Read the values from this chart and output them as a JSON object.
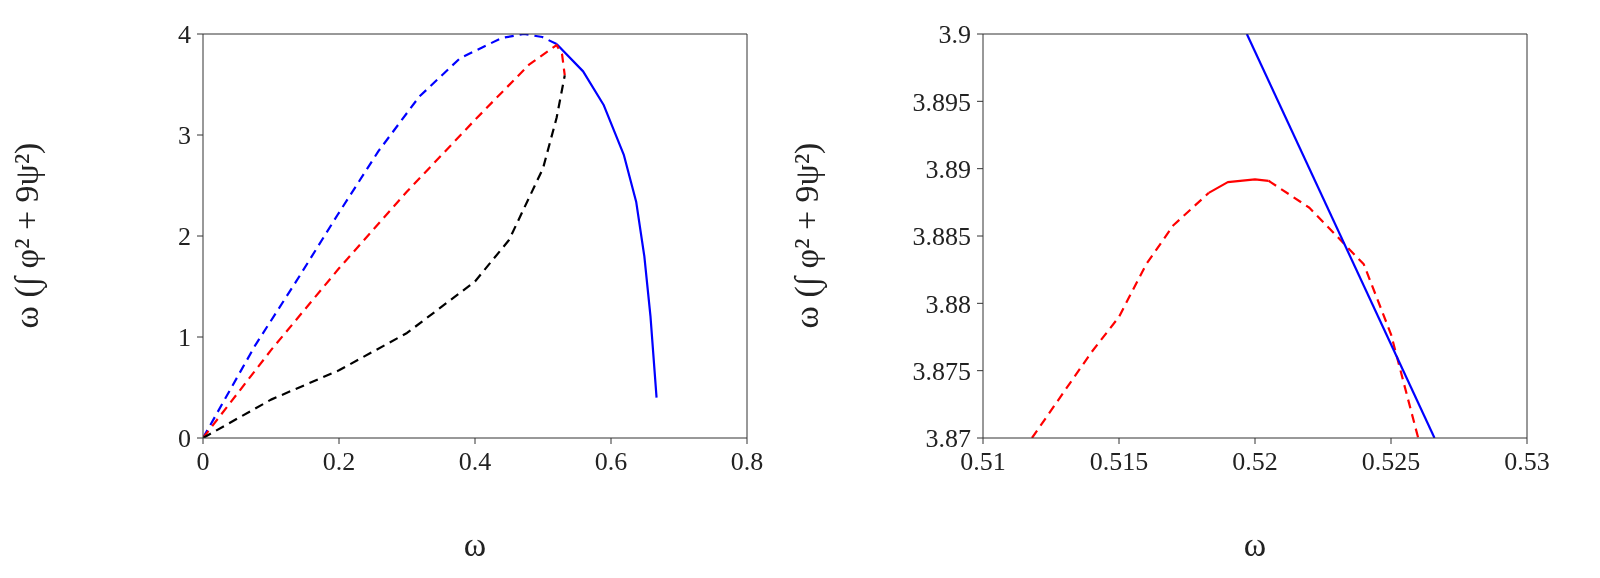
{
  "chart_data": [
    {
      "type": "line",
      "xlabel": "ω",
      "ylabel": "ω (∫ φ² + 9ψ²)",
      "xlim": [
        0,
        0.8
      ],
      "ylim": [
        0,
        4
      ],
      "xticks": [
        0,
        0.2,
        0.4,
        0.6,
        0.8
      ],
      "yticks": [
        0,
        1,
        2,
        3,
        4
      ],
      "series": [
        {
          "color": "#0000ff",
          "line_style": "dashed",
          "x": [
            0,
            0.077,
            0.137,
            0.198,
            0.258,
            0.318,
            0.378,
            0.439,
            0.472,
            0.499,
            0.52
          ],
          "values": [
            0,
            0.92,
            1.55,
            2.21,
            2.84,
            3.38,
            3.76,
            3.96,
            4.0,
            3.97,
            3.9
          ]
        },
        {
          "color": "#0000ff",
          "line_style": "solid",
          "x": [
            0.52,
            0.559,
            0.589,
            0.619,
            0.637,
            0.649,
            0.658,
            0.664,
            0.667
          ],
          "values": [
            3.9,
            3.63,
            3.3,
            2.8,
            2.34,
            1.8,
            1.21,
            0.67,
            0.4
          ]
        },
        {
          "color": "#ff0000",
          "line_style": "dashed",
          "x": [
            0,
            0.1,
            0.2,
            0.3,
            0.4,
            0.48,
            0.52,
            0.528,
            0.532
          ],
          "values": [
            0,
            0.87,
            1.68,
            2.44,
            3.15,
            3.7,
            3.89,
            3.8,
            3.59
          ]
        },
        {
          "color": "#000000",
          "line_style": "dashed",
          "x": [
            0,
            0.1,
            0.2,
            0.3,
            0.4,
            0.45,
            0.5,
            0.52,
            0.532
          ],
          "values": [
            0,
            0.38,
            0.67,
            1.04,
            1.55,
            1.96,
            2.67,
            3.17,
            3.59
          ]
        }
      ]
    },
    {
      "type": "line",
      "xlabel": "ω",
      "ylabel": "ω (∫ φ² + 9ψ²)",
      "xlim": [
        0.51,
        0.53
      ],
      "ylim": [
        3.87,
        3.9
      ],
      "xticks": [
        0.51,
        0.515,
        0.52,
        0.525,
        0.53
      ],
      "yticks": [
        3.87,
        3.875,
        3.88,
        3.885,
        3.89,
        3.895,
        3.9
      ],
      "series": [
        {
          "color": "#ff0000",
          "line_style": "dashed",
          "x": [
            0.5118,
            0.513,
            0.514,
            0.515,
            0.516,
            0.517,
            0.5183
          ],
          "values": [
            3.87,
            3.8735,
            3.8764,
            3.879,
            3.8829,
            3.8858,
            3.8882
          ]
        },
        {
          "color": "#ff0000",
          "line_style": "solid",
          "x": [
            0.5183,
            0.519,
            0.52,
            0.5205
          ],
          "values": [
            3.8882,
            3.889,
            3.8892,
            3.8891
          ]
        },
        {
          "color": "#ff0000",
          "line_style": "dashed",
          "x": [
            0.5205,
            0.522,
            0.524,
            0.525,
            0.526
          ],
          "values": [
            3.8891,
            3.8871,
            3.8829,
            3.8777,
            3.87
          ]
        },
        {
          "color": "#0000ff",
          "line_style": "solid",
          "x": [
            0.5197,
            0.5266
          ],
          "values": [
            3.9,
            3.87
          ]
        }
      ]
    }
  ]
}
